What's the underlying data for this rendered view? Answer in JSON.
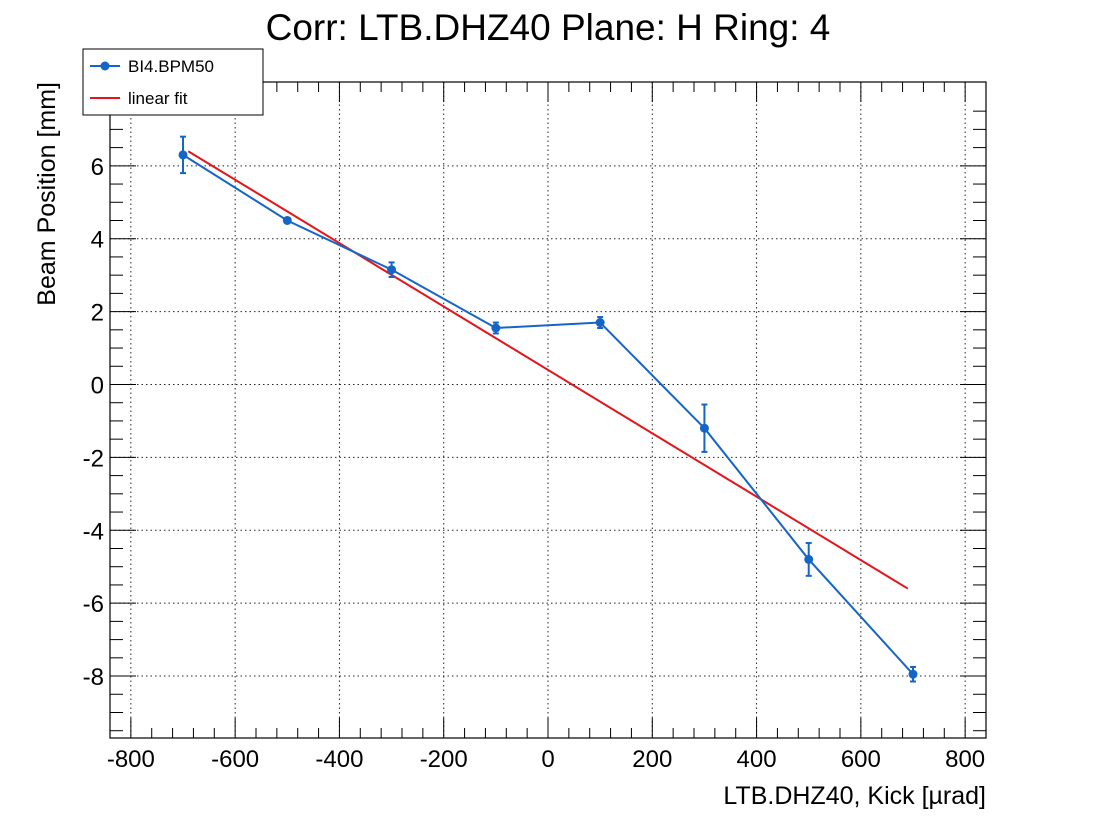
{
  "chart_data": {
    "type": "line",
    "title": "Corr: LTB.DHZ40 Plane: H Ring: 4",
    "xlabel": "LTB.DHZ40, Kick [µrad]",
    "ylabel": "Beam Position [mm]",
    "xlim": [
      -840,
      840
    ],
    "ylim": [
      -9.7,
      8.3
    ],
    "x_ticks": [
      -800,
      -600,
      -400,
      -200,
      0,
      200,
      400,
      600,
      800
    ],
    "x_tick_labels": [
      "-800",
      "-600",
      "-400",
      "-200",
      "0",
      "200",
      "400",
      "600",
      "800"
    ],
    "y_ticks": [
      -8,
      -6,
      -4,
      -2,
      0,
      2,
      4,
      6
    ],
    "y_tick_labels": [
      "-8",
      "-6",
      "-4",
      "-2",
      "0",
      "2",
      "4",
      "6"
    ],
    "grid": true,
    "legend_position": "top-left",
    "series": [
      {
        "name": "BI4.BPM50",
        "color": "#1565c9",
        "marker": "circle",
        "x": [
          -700,
          -500,
          -300,
          -100,
          100,
          300,
          500,
          700
        ],
        "y": [
          6.3,
          4.5,
          3.15,
          1.55,
          1.7,
          -1.2,
          -4.8,
          -7.95
        ],
        "y_err": [
          0.5,
          0.05,
          0.2,
          0.15,
          0.15,
          0.65,
          0.45,
          0.2
        ]
      },
      {
        "name": "linear fit",
        "color": "#e4161b",
        "x": [
          -690,
          690
        ],
        "y": [
          6.4,
          -5.6
        ]
      }
    ]
  }
}
